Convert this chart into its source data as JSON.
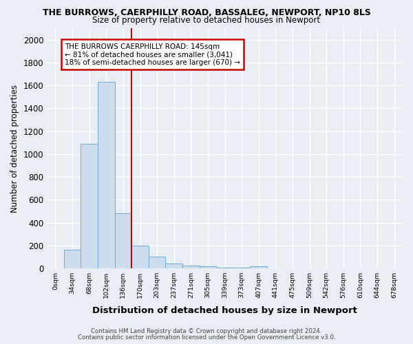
{
  "title": "THE BURROWS, CAERPHILLY ROAD, BASSALEG, NEWPORT, NP10 8LS",
  "subtitle": "Size of property relative to detached houses in Newport",
  "xlabel": "Distribution of detached houses by size in Newport",
  "ylabel": "Number of detached properties",
  "footnote1": "Contains HM Land Registry data © Crown copyright and database right 2024.",
  "footnote2": "Contains public sector information licensed under the Open Government Licence v3.0.",
  "bar_labels": [
    "0sqm",
    "34sqm",
    "68sqm",
    "102sqm",
    "136sqm",
    "170sqm",
    "203sqm",
    "237sqm",
    "271sqm",
    "305sqm",
    "339sqm",
    "373sqm",
    "407sqm",
    "441sqm",
    "475sqm",
    "509sqm",
    "542sqm",
    "576sqm",
    "610sqm",
    "644sqm",
    "678sqm"
  ],
  "bar_values": [
    0,
    160,
    1090,
    1630,
    480,
    200,
    100,
    40,
    25,
    20,
    5,
    5,
    20,
    0,
    0,
    0,
    0,
    0,
    0,
    0,
    0
  ],
  "bar_color": "#ccdded",
  "bar_edge_color": "#6aaed6",
  "ylim": [
    0,
    2100
  ],
  "yticks": [
    0,
    200,
    400,
    600,
    800,
    1000,
    1200,
    1400,
    1600,
    1800,
    2000
  ],
  "vline_color": "#cc0000",
  "vline_bin_index": 4,
  "annotation_text": "THE BURROWS CAERPHILLY ROAD: 145sqm\n← 81% of detached houses are smaller (3,041)\n18% of semi-detached houses are larger (670) →",
  "annotation_box_color": "#ffffff",
  "annotation_box_edge": "#cc0000",
  "background_color": "#e8eef4",
  "grid_color": "#ffffff",
  "title_fontsize": 9,
  "subtitle_fontsize": 8.5
}
